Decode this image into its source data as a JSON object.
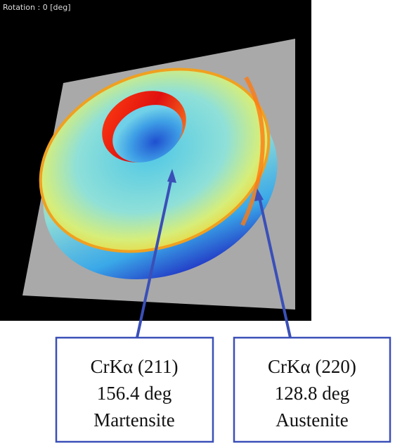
{
  "image": {
    "caption": "Rotation : 0 [deg]"
  },
  "callouts": [
    {
      "lines": [
        "CrKα (211)",
        "156.4 deg",
        "Martensite"
      ]
    },
    {
      "lines": [
        "CrKα (220)",
        "128.8 deg",
        "Austenite"
      ]
    }
  ]
}
